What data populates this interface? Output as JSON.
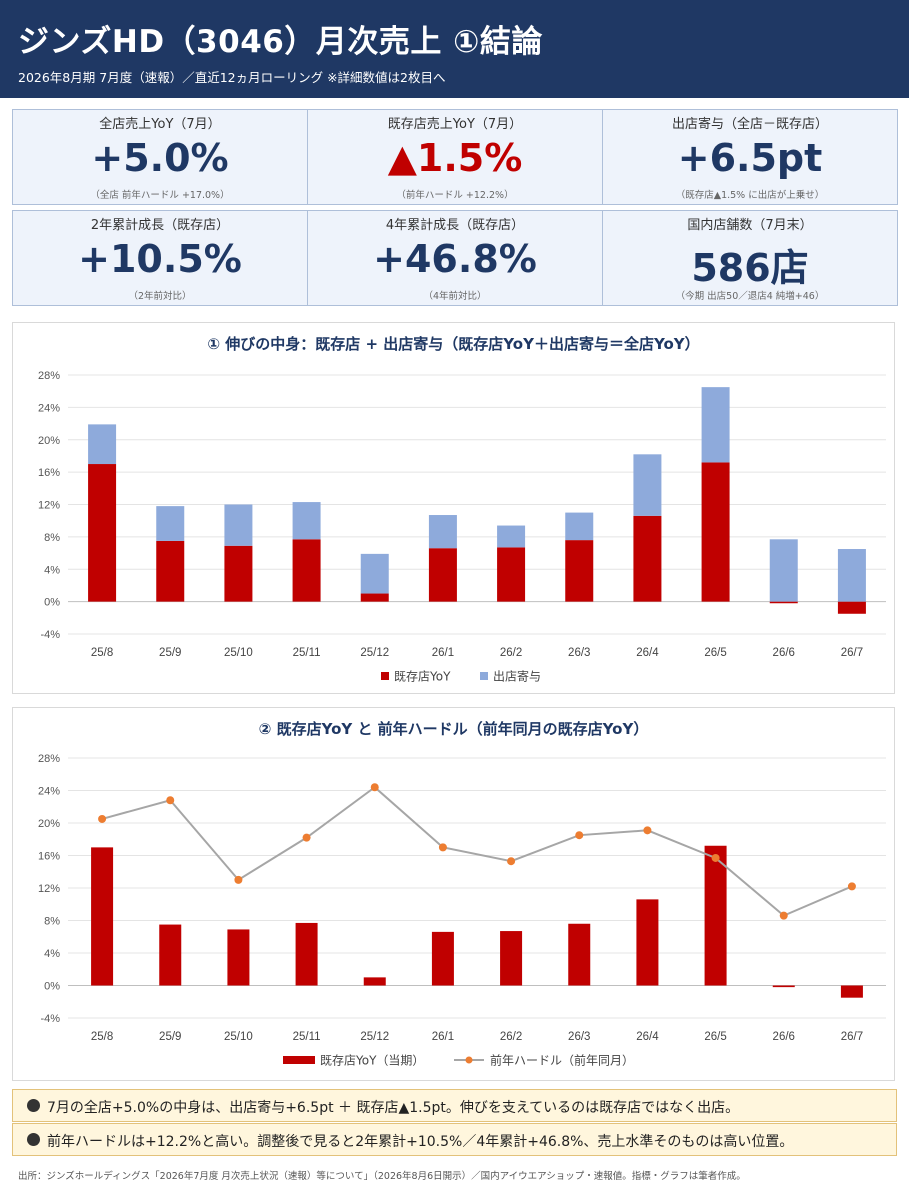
{
  "header": {
    "title": "ジンズHD（3046）月次売上 ①結論",
    "subtitle": "2026年8月期 7月度（速報）／直近12ヵ月ローリング ※詳細数値は2枚目へ"
  },
  "kpis": [
    {
      "label": "全店売上YoY（7月）",
      "value": "+5.0%",
      "note": "（全店 前年ハードル +17.0%）",
      "negative": false
    },
    {
      "label": "既存店売上YoY（7月）",
      "value": "▲1.5%",
      "note": "（前年ハードル +12.2%）",
      "negative": true
    },
    {
      "label": "出店寄与（全店－既存店）",
      "value": "+6.5pt",
      "note": "（既存店▲1.5% に出店が上乗せ）",
      "negative": false
    },
    {
      "label": "2年累計成長（既存店）",
      "value": "+10.5%",
      "note": "（2年前対比）",
      "negative": false
    },
    {
      "label": "4年累計成長（既存店）",
      "value": "+46.8%",
      "note": "（4年前対比）",
      "negative": false
    },
    {
      "label": "国内店舗数（7月末）",
      "value": "586店",
      "note": "（今期 出店50／退店4 純増+46）",
      "negative": false
    }
  ],
  "chart_data": [
    {
      "type": "bar",
      "stacked": true,
      "title": "① 伸びの中身：既存店 + 出店寄与（既存店YoY＋出店寄与＝全店YoY）",
      "categories": [
        "25/8",
        "25/9",
        "25/10",
        "25/11",
        "25/12",
        "26/1",
        "26/2",
        "26/3",
        "26/4",
        "26/5",
        "26/6",
        "26/7"
      ],
      "series": [
        {
          "name": "既存店YoY",
          "color": "#c00000",
          "values": [
            17.0,
            7.5,
            6.9,
            7.7,
            1.0,
            6.6,
            6.7,
            7.6,
            10.6,
            17.2,
            -0.2,
            -1.5
          ]
        },
        {
          "name": "出店寄与",
          "color": "#8eaadb",
          "values": [
            4.9,
            4.3,
            5.1,
            4.6,
            4.9,
            4.1,
            2.7,
            3.4,
            7.6,
            9.3,
            7.7,
            6.5
          ]
        }
      ],
      "ylim": [
        -4,
        28
      ],
      "yticks": [
        -4,
        0,
        4,
        8,
        12,
        16,
        20,
        24,
        28
      ],
      "tick_format": "{v}%",
      "grid": true,
      "legend": "bottom"
    },
    {
      "type": "bar",
      "title": "② 既存店YoY と 前年ハードル（前年同月の既存店YoY）",
      "categories": [
        "25/8",
        "25/9",
        "25/10",
        "25/11",
        "25/12",
        "26/1",
        "26/2",
        "26/3",
        "26/4",
        "26/5",
        "26/6",
        "26/7"
      ],
      "series": [
        {
          "name": "既存店YoY（当期）",
          "kind": "bar",
          "color": "#c00000",
          "values": [
            17.0,
            7.5,
            6.9,
            7.7,
            1.0,
            6.6,
            6.7,
            7.6,
            10.6,
            17.2,
            -0.2,
            -1.5
          ]
        },
        {
          "name": "前年ハードル（前年同月）",
          "kind": "line",
          "color": "#a6a6a6",
          "marker_color": "#ed7d31",
          "values": [
            20.5,
            22.8,
            13.0,
            18.2,
            24.4,
            17.0,
            15.3,
            18.5,
            19.1,
            15.7,
            8.6,
            12.2
          ]
        }
      ],
      "ylim": [
        -4,
        28
      ],
      "yticks": [
        -4,
        0,
        4,
        8,
        12,
        16,
        20,
        24,
        28
      ],
      "tick_format": "{v}%",
      "grid": true,
      "legend": "bottom"
    }
  ],
  "bullets": [
    "7月の全店+5.0%の中身は、出店寄与+6.5pt ＋ 既存店▲1.5pt。伸びを支えているのは既存店ではなく出店。",
    "前年ハードルは+12.2%と高い。調整後で見ると2年累計+10.5%／4年累計+46.8%、売上水準そのものは高い位置。"
  ],
  "footer": "出所：ジンズホールディングス「2026年7月度 月次売上状況（速報）等について」（2026年8月6日開示）／国内アイウエアショップ・速報値。指標・グラフは筆者作成。"
}
